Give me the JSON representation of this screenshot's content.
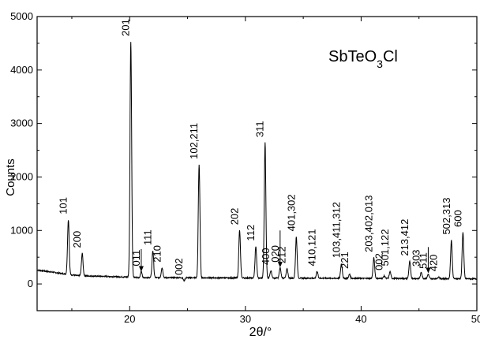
{
  "chart_data": {
    "type": "line",
    "title": "SbTeO",
    "title_sub": "3",
    "title_tail": "Cl",
    "xlabel": "2θ/°",
    "ylabel": "Counts",
    "xlim": [
      12,
      50
    ],
    "ylim": [
      -500,
      5000
    ],
    "xticks": [
      20,
      30,
      40,
      50
    ],
    "yticks": [
      0,
      1000,
      2000,
      3000,
      4000,
      5000
    ],
    "grid": false,
    "background_level": 120,
    "peaks": [
      {
        "x": 14.7,
        "y": 1200,
        "label": "101"
      },
      {
        "x": 15.9,
        "y": 570,
        "label": "200"
      },
      {
        "x": 20.1,
        "y": 4530,
        "label": "201"
      },
      {
        "x": 21.0,
        "y": 230,
        "label": "011"
      },
      {
        "x": 22.0,
        "y": 620,
        "label": "111"
      },
      {
        "x": 22.8,
        "y": 300,
        "label": "210"
      },
      {
        "x": 24.7,
        "y": 60,
        "label": "002"
      },
      {
        "x": 26.0,
        "y": 2230,
        "label": "102,211"
      },
      {
        "x": 29.5,
        "y": 1000,
        "label": "202"
      },
      {
        "x": 30.9,
        "y": 700,
        "label": "112"
      },
      {
        "x": 31.7,
        "y": 2640,
        "label": "311"
      },
      {
        "x": 32.2,
        "y": 250,
        "label": "400"
      },
      {
        "x": 33.0,
        "y": 300,
        "label": "020"
      },
      {
        "x": 33.6,
        "y": 280,
        "label": "212"
      },
      {
        "x": 34.4,
        "y": 880,
        "label": "401,302"
      },
      {
        "x": 36.2,
        "y": 230,
        "label": "410,121"
      },
      {
        "x": 38.3,
        "y": 380,
        "label": "103,411,312"
      },
      {
        "x": 39.0,
        "y": 180,
        "label": "221"
      },
      {
        "x": 41.1,
        "y": 490,
        "label": "203,402,013"
      },
      {
        "x": 42.0,
        "y": 150,
        "label": "002"
      },
      {
        "x": 42.5,
        "y": 230,
        "label": "501,122"
      },
      {
        "x": 44.2,
        "y": 420,
        "label": "213,412"
      },
      {
        "x": 45.2,
        "y": 220,
        "label": "303"
      },
      {
        "x": 45.8,
        "y": 180,
        "label": "511"
      },
      {
        "x": 46.7,
        "y": 130,
        "label": "420"
      },
      {
        "x": 47.8,
        "y": 820,
        "label": "502,313"
      },
      {
        "x": 48.8,
        "y": 960,
        "label": "600"
      }
    ]
  }
}
